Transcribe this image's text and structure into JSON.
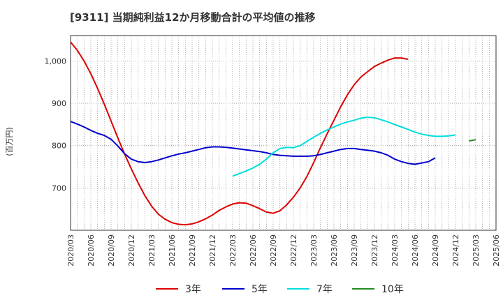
{
  "chart_data": {
    "type": "line",
    "title": "[9311]  当期純利益12か月移動合計の平均値の推移",
    "ylabel": "(百万円)",
    "xlabel": "",
    "ylim": [
      600,
      1060
    ],
    "yticks": [
      700,
      800,
      900,
      "1,000"
    ],
    "ytick_values": [
      700,
      800,
      900,
      1000
    ],
    "x_ticks": [
      "2020/03",
      "2020/06",
      "2020/09",
      "2020/12",
      "2021/03",
      "2021/06",
      "2021/09",
      "2021/12",
      "2022/03",
      "2022/06",
      "2022/09",
      "2022/12",
      "2023/03",
      "2023/06",
      "2023/09",
      "2023/12",
      "2024/03",
      "2024/06",
      "2024/09",
      "2024/12",
      "2025/03",
      "2025/06"
    ],
    "grid": true,
    "legend_position": "bottom",
    "series": [
      {
        "name": "3年",
        "color": "#dd0000",
        "start": "2020/03",
        "values": [
          1045,
          1025,
          1000,
          970,
          935,
          898,
          858,
          818,
          780,
          745,
          712,
          682,
          657,
          638,
          626,
          618,
          614,
          613,
          615,
          620,
          627,
          636,
          647,
          655,
          662,
          665,
          664,
          658,
          651,
          643,
          640,
          646,
          660,
          678,
          700,
          727,
          760,
          795,
          828,
          860,
          892,
          920,
          944,
          962,
          975,
          987,
          995,
          1002,
          1007,
          1007,
          1004
        ]
      },
      {
        "name": "5年",
        "color": "#0000cc",
        "start": "2020/03",
        "values": [
          857,
          851,
          844,
          836,
          829,
          824,
          815,
          799,
          781,
          768,
          762,
          760,
          762,
          766,
          771,
          776,
          780,
          783,
          787,
          791,
          795,
          797,
          797,
          796,
          794,
          792,
          790,
          788,
          786,
          783,
          779,
          777,
          776,
          775,
          775,
          775,
          776,
          779,
          783,
          787,
          791,
          793,
          793,
          791,
          789,
          787,
          783,
          777,
          768,
          762,
          758,
          756,
          759,
          762,
          771
        ]
      },
      {
        "name": "7年",
        "color": "#00dddd",
        "start": "2022/03",
        "values": [
          728,
          734,
          740,
          747,
          756,
          768,
          783,
          793,
          796,
          795,
          800,
          810,
          820,
          829,
          837,
          844,
          851,
          856,
          860,
          865,
          867,
          866,
          861,
          856,
          850,
          844,
          838,
          832,
          827,
          824,
          822,
          822,
          823,
          825
        ]
      },
      {
        "name": "10年",
        "color": "#228b22",
        "start": "2025/02",
        "values": [
          811,
          814
        ]
      }
    ]
  }
}
